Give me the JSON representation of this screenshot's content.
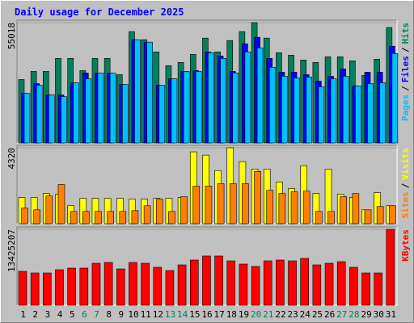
{
  "title": "Daily usage for December 2025",
  "categories": [
    "1",
    "2",
    "3",
    "4",
    "5",
    "6",
    "7",
    "8",
    "9",
    "10",
    "11",
    "12",
    "13",
    "14",
    "15",
    "16",
    "17",
    "18",
    "19",
    "20",
    "21",
    "22",
    "23",
    "24",
    "25",
    "26",
    "27",
    "28",
    "29",
    "30",
    "31"
  ],
  "label_colors": [
    "#000000",
    "#000000",
    "#000000",
    "#000000",
    "#000000",
    "#00805c",
    "#00805c",
    "#000000",
    "#000000",
    "#000000",
    "#000000",
    "#000000",
    "#00805c",
    "#00805c",
    "#000000",
    "#000000",
    "#000000",
    "#000000",
    "#000000",
    "#00805c",
    "#00805c",
    "#000000",
    "#000000",
    "#000000",
    "#000000",
    "#000000",
    "#00805c",
    "#00805c",
    "#000000",
    "#000000",
    "#000000"
  ],
  "legend_separator": "/",
  "chart_data": [
    {
      "type": "bar",
      "ylim": [
        0,
        55018
      ],
      "yticks": [
        55018
      ],
      "series": [
        {
          "name": "Hits",
          "color": "#00805c",
          "values": [
            28993,
            32710,
            32710,
            38657,
            38657,
            33081,
            38657,
            38657,
            31223,
            50923,
            47206,
            41630,
            35312,
            36798,
            40515,
            47949,
            41630,
            46834,
            50923,
            55018,
            47949,
            41259,
            40144,
            37913,
            36798,
            39400,
            39400,
            37542,
            30851,
            38285,
            52781
          ]
        },
        {
          "name": "Files",
          "color": "#0000ff",
          "values": [
            22674,
            27134,
            21930,
            21930,
            27506,
            31966,
            31966,
            31966,
            26762,
            47206,
            46091,
            26391,
            29364,
            32710,
            33081,
            41630,
            39772,
            32710,
            45347,
            48321,
            38657,
            32338,
            32338,
            31223,
            28249,
            30479,
            33825,
            26019,
            32338,
            32338,
            44232
          ]
        },
        {
          "name": "Pages",
          "color": "#00c0ff",
          "values": [
            22674,
            26391,
            21930,
            21187,
            27506,
            29364,
            31966,
            31966,
            26762,
            47206,
            46091,
            26391,
            29364,
            32710,
            32710,
            41259,
            38657,
            31966,
            41630,
            43489,
            34568,
            30479,
            29736,
            30108,
            25647,
            29364,
            30479,
            26019,
            27134,
            27506,
            40887
          ]
        }
      ]
    },
    {
      "type": "bar",
      "ylim": [
        0,
        4320
      ],
      "yticks": [
        4320
      ],
      "series": [
        {
          "name": "Visits",
          "color": "#ffff00",
          "values": [
            1486,
            1486,
            1719,
            1672,
            1022,
            1440,
            1440,
            1440,
            1440,
            1394,
            1394,
            1440,
            1440,
            1486,
            4088,
            3902,
            3019,
            4320,
            3530,
            3112,
            3112,
            2369,
            1997,
            3298,
            1719,
            3112,
            1672,
            1486,
            790,
            1765,
            1022
          ]
        },
        {
          "name": "Sites",
          "color": "#ff8000",
          "values": [
            883,
            790,
            1579,
            2230,
            697,
            697,
            697,
            697,
            697,
            743,
            1022,
            1394,
            697,
            1533,
            2137,
            2137,
            2276,
            2276,
            2276,
            2973,
            1904,
            1719,
            1812,
            1858,
            697,
            697,
            1533,
            1719,
            790,
            975,
            1022
          ]
        }
      ]
    },
    {
      "type": "bar",
      "ylim": [
        0,
        13425207
      ],
      "yticks": [
        13425207
      ],
      "series": [
        {
          "name": "KBytes",
          "color": "#ff0000",
          "values": [
            5998482,
            5712840,
            5712840,
            6284124,
            6569766,
            6569766,
            7426692,
            7569513,
            6426945,
            7569513,
            7426692,
            6712587,
            6141303,
            7141050,
            7997976,
            8712081,
            8712081,
            7855155,
            7283871,
            6855408,
            7855155,
            7997976,
            7855155,
            8283618,
            7141050,
            7426692,
            7712334,
            6712587,
            5712840,
            5712840,
            13425207
          ]
        }
      ]
    }
  ]
}
